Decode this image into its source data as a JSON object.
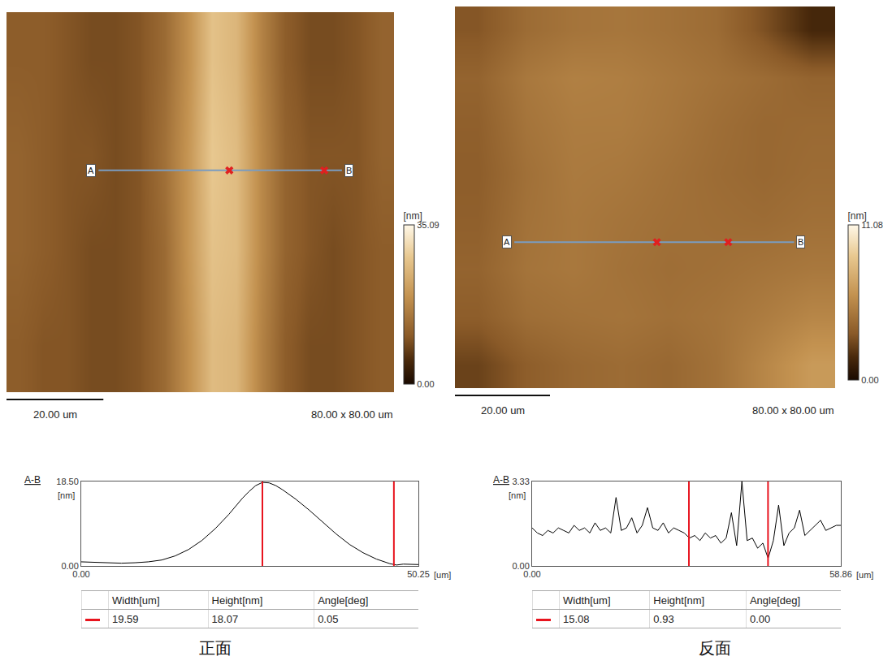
{
  "chart_data": [
    {
      "type": "heatmap",
      "x": [
        2.5,
        7.5,
        12.5,
        17.5,
        22.5,
        27.5,
        32.5,
        37.5,
        42.5,
        47.5,
        52.5,
        57.5,
        62.5,
        67.5,
        72.5,
        77.5
      ],
      "y": [
        10,
        30,
        50,
        70
      ],
      "z": [
        [
          11,
          10,
          10,
          9,
          9,
          10,
          13,
          19,
          26,
          25,
          17,
          11,
          9,
          9,
          10,
          11
        ],
        [
          12,
          11,
          10,
          9,
          9,
          10,
          13,
          20,
          27,
          26,
          18,
          12,
          10,
          9,
          10,
          11
        ],
        [
          12,
          11,
          10,
          10,
          9,
          10,
          14,
          20,
          28,
          26,
          18,
          12,
          10,
          10,
          10,
          12
        ],
        [
          11,
          11,
          10,
          9,
          9,
          10,
          13,
          19,
          27,
          25,
          17,
          11,
          9,
          9,
          10,
          12
        ]
      ],
      "xlim": [
        0,
        80
      ],
      "ylim": [
        0,
        80
      ],
      "tick_labels": false,
      "grid": false,
      "zlim": [
        0,
        35.09
      ],
      "colorbar_ticks": [
        {
          "value": 0,
          "label": "0.00"
        },
        35.09
      ],
      "colorbar_title": "[nm]",
      "scale_bar": {
        "length": 20,
        "label": "20.00 um"
      },
      "size_label": "80.00 x 80.00 um",
      "line": {
        "start_label": "A",
        "end_label": "B",
        "x0": 19,
        "x1": 69.25,
        "y": 46.7,
        "markers": [
          46.0,
          65.6
        ]
      }
    },
    {
      "type": "line",
      "title": "A-B",
      "x": [
        0,
        2,
        4,
        6,
        8,
        10,
        12,
        14,
        16,
        18,
        20,
        22,
        24,
        25,
        26,
        27,
        28,
        29,
        30,
        32,
        34,
        36,
        38,
        40,
        42,
        44,
        46,
        47,
        48,
        50.25
      ],
      "values": [
        0.9,
        0.8,
        0.6,
        0.6,
        0.7,
        0.9,
        1.3,
        2.2,
        3.6,
        5.6,
        8.2,
        11.3,
        14.8,
        16.3,
        17.6,
        18.3,
        18.2,
        17.6,
        16.7,
        14.6,
        12.2,
        9.6,
        7.0,
        4.7,
        2.9,
        1.5,
        0.5,
        0.2,
        0.4,
        0.3
      ],
      "color": "#000000",
      "xlim": [
        0,
        50.25
      ],
      "ylim": [
        0,
        18.5
      ],
      "xticks": [
        {
          "value": 0,
          "label": "0.00"
        },
        50.25
      ],
      "yticks": [
        {
          "value": 0,
          "label": "0.00"
        },
        {
          "value": 18.5,
          "label": "18.50"
        }
      ],
      "x_unit": "[um]",
      "y_unit": "[nm]",
      "grid": false,
      "cursors": [
        27.0,
        46.6
      ]
    },
    {
      "type": "heatmap",
      "x": [
        5,
        15,
        25,
        35,
        45,
        55,
        65,
        75
      ],
      "y": [
        5,
        15,
        25,
        35,
        45,
        55,
        65,
        75
      ],
      "z": [
        [
          2.5,
          3.5,
          4.0,
          4.2,
          4.0,
          4.5,
          5.5,
          6.5
        ],
        [
          3.5,
          4.3,
          4.5,
          4.6,
          4.4,
          4.6,
          5.0,
          5.5
        ],
        [
          3.8,
          4.6,
          4.8,
          4.5,
          4.3,
          4.4,
          4.6,
          4.8
        ],
        [
          3.6,
          4.5,
          4.8,
          4.6,
          4.4,
          4.3,
          4.2,
          4.4
        ],
        [
          3.5,
          4.4,
          4.9,
          4.8,
          4.5,
          4.2,
          4.0,
          4.2
        ],
        [
          3.6,
          4.6,
          5.0,
          5.0,
          4.7,
          4.3,
          4.0,
          4.1
        ],
        [
          3.8,
          4.8,
          5.2,
          5.1,
          4.8,
          4.5,
          4.2,
          3.8
        ],
        [
          3.2,
          4.2,
          4.6,
          4.7,
          4.5,
          4.2,
          3.0,
          1.5
        ]
      ],
      "xlim": [
        0,
        80
      ],
      "ylim": [
        0,
        80
      ],
      "tick_labels": false,
      "grid": false,
      "zlim": [
        0,
        11.08
      ],
      "colorbar_ticks": [
        {
          "value": 0,
          "label": "0.00"
        },
        11.08
      ],
      "colorbar_title": "[nm]",
      "scale_bar": {
        "length": 20,
        "label": "20.00 um"
      },
      "size_label": "80.00 x 80.00 um",
      "line": {
        "start_label": "A",
        "end_label": "B",
        "x0": 12.5,
        "x1": 71.36,
        "y": 30.6,
        "markers": [
          42.5,
          57.5
        ]
      }
    },
    {
      "type": "line",
      "title": "A-B",
      "x": [
        0,
        1,
        2,
        3,
        4,
        5,
        6,
        7,
        8,
        9,
        10,
        11,
        12,
        13,
        14,
        15,
        16,
        17,
        18,
        19,
        20,
        21,
        22,
        23,
        24,
        25,
        26,
        27,
        28,
        29,
        30,
        31,
        32,
        33,
        34,
        35,
        36,
        37,
        38,
        39,
        40,
        41,
        42,
        43,
        44,
        45,
        46,
        47,
        48,
        49,
        50,
        51,
        52,
        53,
        54,
        55,
        56,
        57,
        58,
        58.86
      ],
      "values": [
        1.5,
        1.3,
        1.2,
        1.4,
        1.3,
        1.5,
        1.4,
        1.3,
        1.6,
        1.4,
        1.5,
        1.3,
        1.7,
        1.4,
        1.5,
        1.3,
        2.7,
        1.4,
        1.5,
        1.9,
        1.3,
        1.6,
        2.3,
        1.5,
        1.4,
        1.7,
        1.3,
        1.5,
        1.4,
        1.3,
        1.1,
        1.2,
        1.0,
        1.3,
        1.1,
        1.2,
        0.9,
        1.1,
        2.1,
        0.8,
        3.33,
        1.0,
        1.1,
        0.7,
        0.9,
        0.3,
        1.0,
        2.4,
        0.8,
        1.3,
        1.5,
        2.2,
        1.2,
        1.4,
        1.6,
        1.8,
        1.4,
        1.5,
        1.6,
        1.6
      ],
      "color": "#000000",
      "xlim": [
        0,
        58.86
      ],
      "ylim": [
        0,
        3.33
      ],
      "xticks": [
        {
          "value": 0,
          "label": "0.00"
        },
        58.86
      ],
      "yticks": [
        {
          "value": 0,
          "label": "0.00"
        },
        3.33
      ],
      "x_unit": "[um]",
      "y_unit": "[nm]",
      "grid": false,
      "cursors": [
        29.9,
        44.98
      ]
    }
  ],
  "tables": [
    {
      "header": [
        "Width[um]",
        "Height[nm]",
        "Angle[deg]"
      ],
      "rows": [
        [
          "19.59",
          "18.07",
          "0.05"
        ]
      ]
    },
    {
      "header": [
        "Width[um]",
        "Height[nm]",
        "Angle[deg]"
      ],
      "rows": [
        [
          "15.08",
          "0.93",
          "0.00"
        ]
      ]
    }
  ],
  "captions": [
    "正面",
    "反面"
  ]
}
